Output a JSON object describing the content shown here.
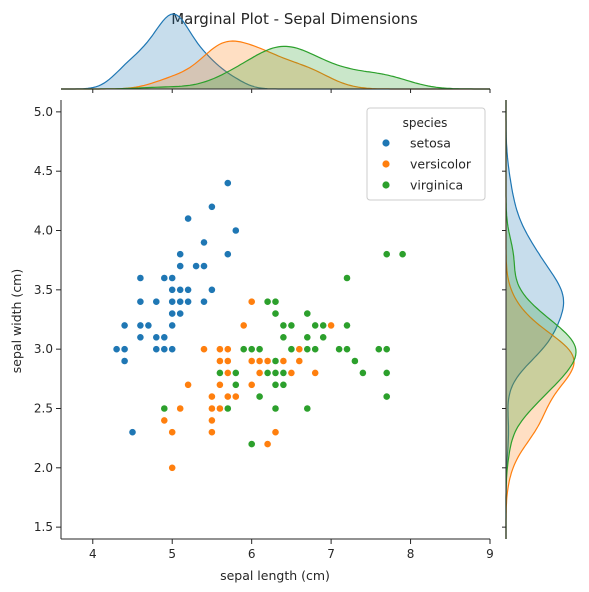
{
  "chart_data": {
    "type": "scatter",
    "title": "Marginal Plot - Sepal Dimensions",
    "xlabel": "sepal length (cm)",
    "ylabel": "sepal width (cm)",
    "xlim": [
      3.6,
      9.0
    ],
    "ylim": [
      1.4,
      5.1
    ],
    "xticks": [
      4,
      5,
      6,
      7,
      8,
      9
    ],
    "yticks": [
      1.5,
      2.0,
      2.5,
      3.0,
      3.5,
      4.0,
      4.5,
      5.0
    ],
    "grid": false,
    "legend": {
      "title": "species",
      "placement": "top-right",
      "entries": [
        "setosa",
        "versicolor",
        "virginica"
      ]
    },
    "marginals": {
      "top": "kde of sepal length by species",
      "right": "kde of sepal width by species"
    },
    "series": [
      {
        "name": "setosa",
        "color": "#1f77b4",
        "points": [
          [
            5.1,
            3.5
          ],
          [
            4.9,
            3.0
          ],
          [
            4.7,
            3.2
          ],
          [
            4.6,
            3.1
          ],
          [
            5.0,
            3.6
          ],
          [
            5.4,
            3.9
          ],
          [
            4.6,
            3.4
          ],
          [
            5.0,
            3.4
          ],
          [
            4.4,
            2.9
          ],
          [
            4.9,
            3.1
          ],
          [
            5.4,
            3.7
          ],
          [
            4.8,
            3.4
          ],
          [
            4.8,
            3.0
          ],
          [
            4.3,
            3.0
          ],
          [
            5.8,
            4.0
          ],
          [
            5.7,
            4.4
          ],
          [
            5.4,
            3.9
          ],
          [
            5.1,
            3.5
          ],
          [
            5.7,
            3.8
          ],
          [
            5.1,
            3.8
          ],
          [
            5.4,
            3.4
          ],
          [
            5.1,
            3.7
          ],
          [
            4.6,
            3.6
          ],
          [
            5.1,
            3.3
          ],
          [
            4.8,
            3.4
          ],
          [
            5.0,
            3.0
          ],
          [
            5.0,
            3.4
          ],
          [
            5.2,
            3.5
          ],
          [
            5.2,
            3.4
          ],
          [
            4.7,
            3.2
          ],
          [
            4.8,
            3.1
          ],
          [
            5.4,
            3.4
          ],
          [
            5.2,
            4.1
          ],
          [
            5.5,
            4.2
          ],
          [
            4.9,
            3.1
          ],
          [
            5.0,
            3.2
          ],
          [
            5.5,
            3.5
          ],
          [
            4.9,
            3.6
          ],
          [
            4.4,
            3.0
          ],
          [
            5.1,
            3.4
          ],
          [
            5.0,
            3.5
          ],
          [
            4.5,
            2.3
          ],
          [
            4.4,
            3.2
          ],
          [
            5.0,
            3.5
          ],
          [
            5.1,
            3.8
          ],
          [
            4.8,
            3.0
          ],
          [
            5.1,
            3.8
          ],
          [
            4.6,
            3.2
          ],
          [
            5.3,
            3.7
          ],
          [
            5.0,
            3.3
          ]
        ]
      },
      {
        "name": "versicolor",
        "color": "#ff7f0e",
        "points": [
          [
            7.0,
            3.2
          ],
          [
            6.4,
            3.2
          ],
          [
            6.9,
            3.1
          ],
          [
            5.5,
            2.3
          ],
          [
            6.5,
            2.8
          ],
          [
            5.7,
            2.8
          ],
          [
            6.3,
            3.3
          ],
          [
            4.9,
            2.4
          ],
          [
            6.6,
            2.9
          ],
          [
            5.2,
            2.7
          ],
          [
            5.0,
            2.0
          ],
          [
            5.9,
            3.0
          ],
          [
            6.0,
            2.2
          ],
          [
            6.1,
            2.9
          ],
          [
            5.6,
            2.9
          ],
          [
            6.7,
            3.1
          ],
          [
            5.6,
            3.0
          ],
          [
            5.8,
            2.7
          ],
          [
            6.2,
            2.2
          ],
          [
            5.6,
            2.5
          ],
          [
            5.9,
            3.2
          ],
          [
            6.1,
            2.8
          ],
          [
            6.3,
            2.5
          ],
          [
            6.1,
            2.8
          ],
          [
            6.4,
            2.9
          ],
          [
            6.6,
            3.0
          ],
          [
            6.8,
            2.8
          ],
          [
            6.7,
            3.0
          ],
          [
            6.0,
            2.9
          ],
          [
            5.7,
            2.6
          ],
          [
            5.5,
            2.4
          ],
          [
            5.5,
            2.4
          ],
          [
            5.8,
            2.7
          ],
          [
            6.0,
            2.7
          ],
          [
            5.4,
            3.0
          ],
          [
            6.0,
            3.4
          ],
          [
            6.7,
            3.1
          ],
          [
            6.3,
            2.3
          ],
          [
            5.6,
            3.0
          ],
          [
            5.5,
            2.5
          ],
          [
            5.5,
            2.6
          ],
          [
            6.1,
            3.0
          ],
          [
            5.8,
            2.6
          ],
          [
            5.0,
            2.3
          ],
          [
            5.6,
            2.7
          ],
          [
            5.7,
            3.0
          ],
          [
            5.7,
            2.9
          ],
          [
            6.2,
            2.9
          ],
          [
            5.1,
            2.5
          ],
          [
            5.7,
            2.8
          ]
        ]
      },
      {
        "name": "virginica",
        "color": "#2ca02c",
        "points": [
          [
            6.3,
            3.3
          ],
          [
            5.8,
            2.7
          ],
          [
            7.1,
            3.0
          ],
          [
            6.3,
            2.9
          ],
          [
            6.5,
            3.0
          ],
          [
            7.6,
            3.0
          ],
          [
            4.9,
            2.5
          ],
          [
            7.3,
            2.9
          ],
          [
            6.7,
            2.5
          ],
          [
            7.2,
            3.6
          ],
          [
            6.5,
            3.2
          ],
          [
            6.4,
            2.7
          ],
          [
            6.8,
            3.0
          ],
          [
            5.7,
            2.5
          ],
          [
            5.8,
            2.8
          ],
          [
            6.4,
            3.2
          ],
          [
            6.5,
            3.0
          ],
          [
            7.7,
            3.8
          ],
          [
            7.7,
            2.6
          ],
          [
            6.0,
            2.2
          ],
          [
            6.9,
            3.2
          ],
          [
            5.6,
            2.8
          ],
          [
            7.7,
            2.8
          ],
          [
            6.3,
            2.7
          ],
          [
            6.7,
            3.3
          ],
          [
            7.2,
            3.2
          ],
          [
            6.2,
            2.8
          ],
          [
            6.1,
            3.0
          ],
          [
            6.4,
            2.8
          ],
          [
            7.2,
            3.0
          ],
          [
            7.4,
            2.8
          ],
          [
            7.9,
            3.8
          ],
          [
            6.4,
            2.8
          ],
          [
            6.3,
            2.8
          ],
          [
            6.1,
            2.6
          ],
          [
            7.7,
            3.0
          ],
          [
            6.3,
            3.4
          ],
          [
            6.4,
            3.1
          ],
          [
            6.0,
            3.0
          ],
          [
            6.9,
            3.1
          ],
          [
            6.7,
            3.1
          ],
          [
            6.9,
            3.1
          ],
          [
            5.8,
            2.7
          ],
          [
            6.8,
            3.2
          ],
          [
            6.7,
            3.3
          ],
          [
            6.7,
            3.0
          ],
          [
            6.3,
            2.5
          ],
          [
            6.5,
            3.0
          ],
          [
            6.2,
            3.4
          ],
          [
            5.9,
            3.0
          ]
        ]
      }
    ]
  }
}
